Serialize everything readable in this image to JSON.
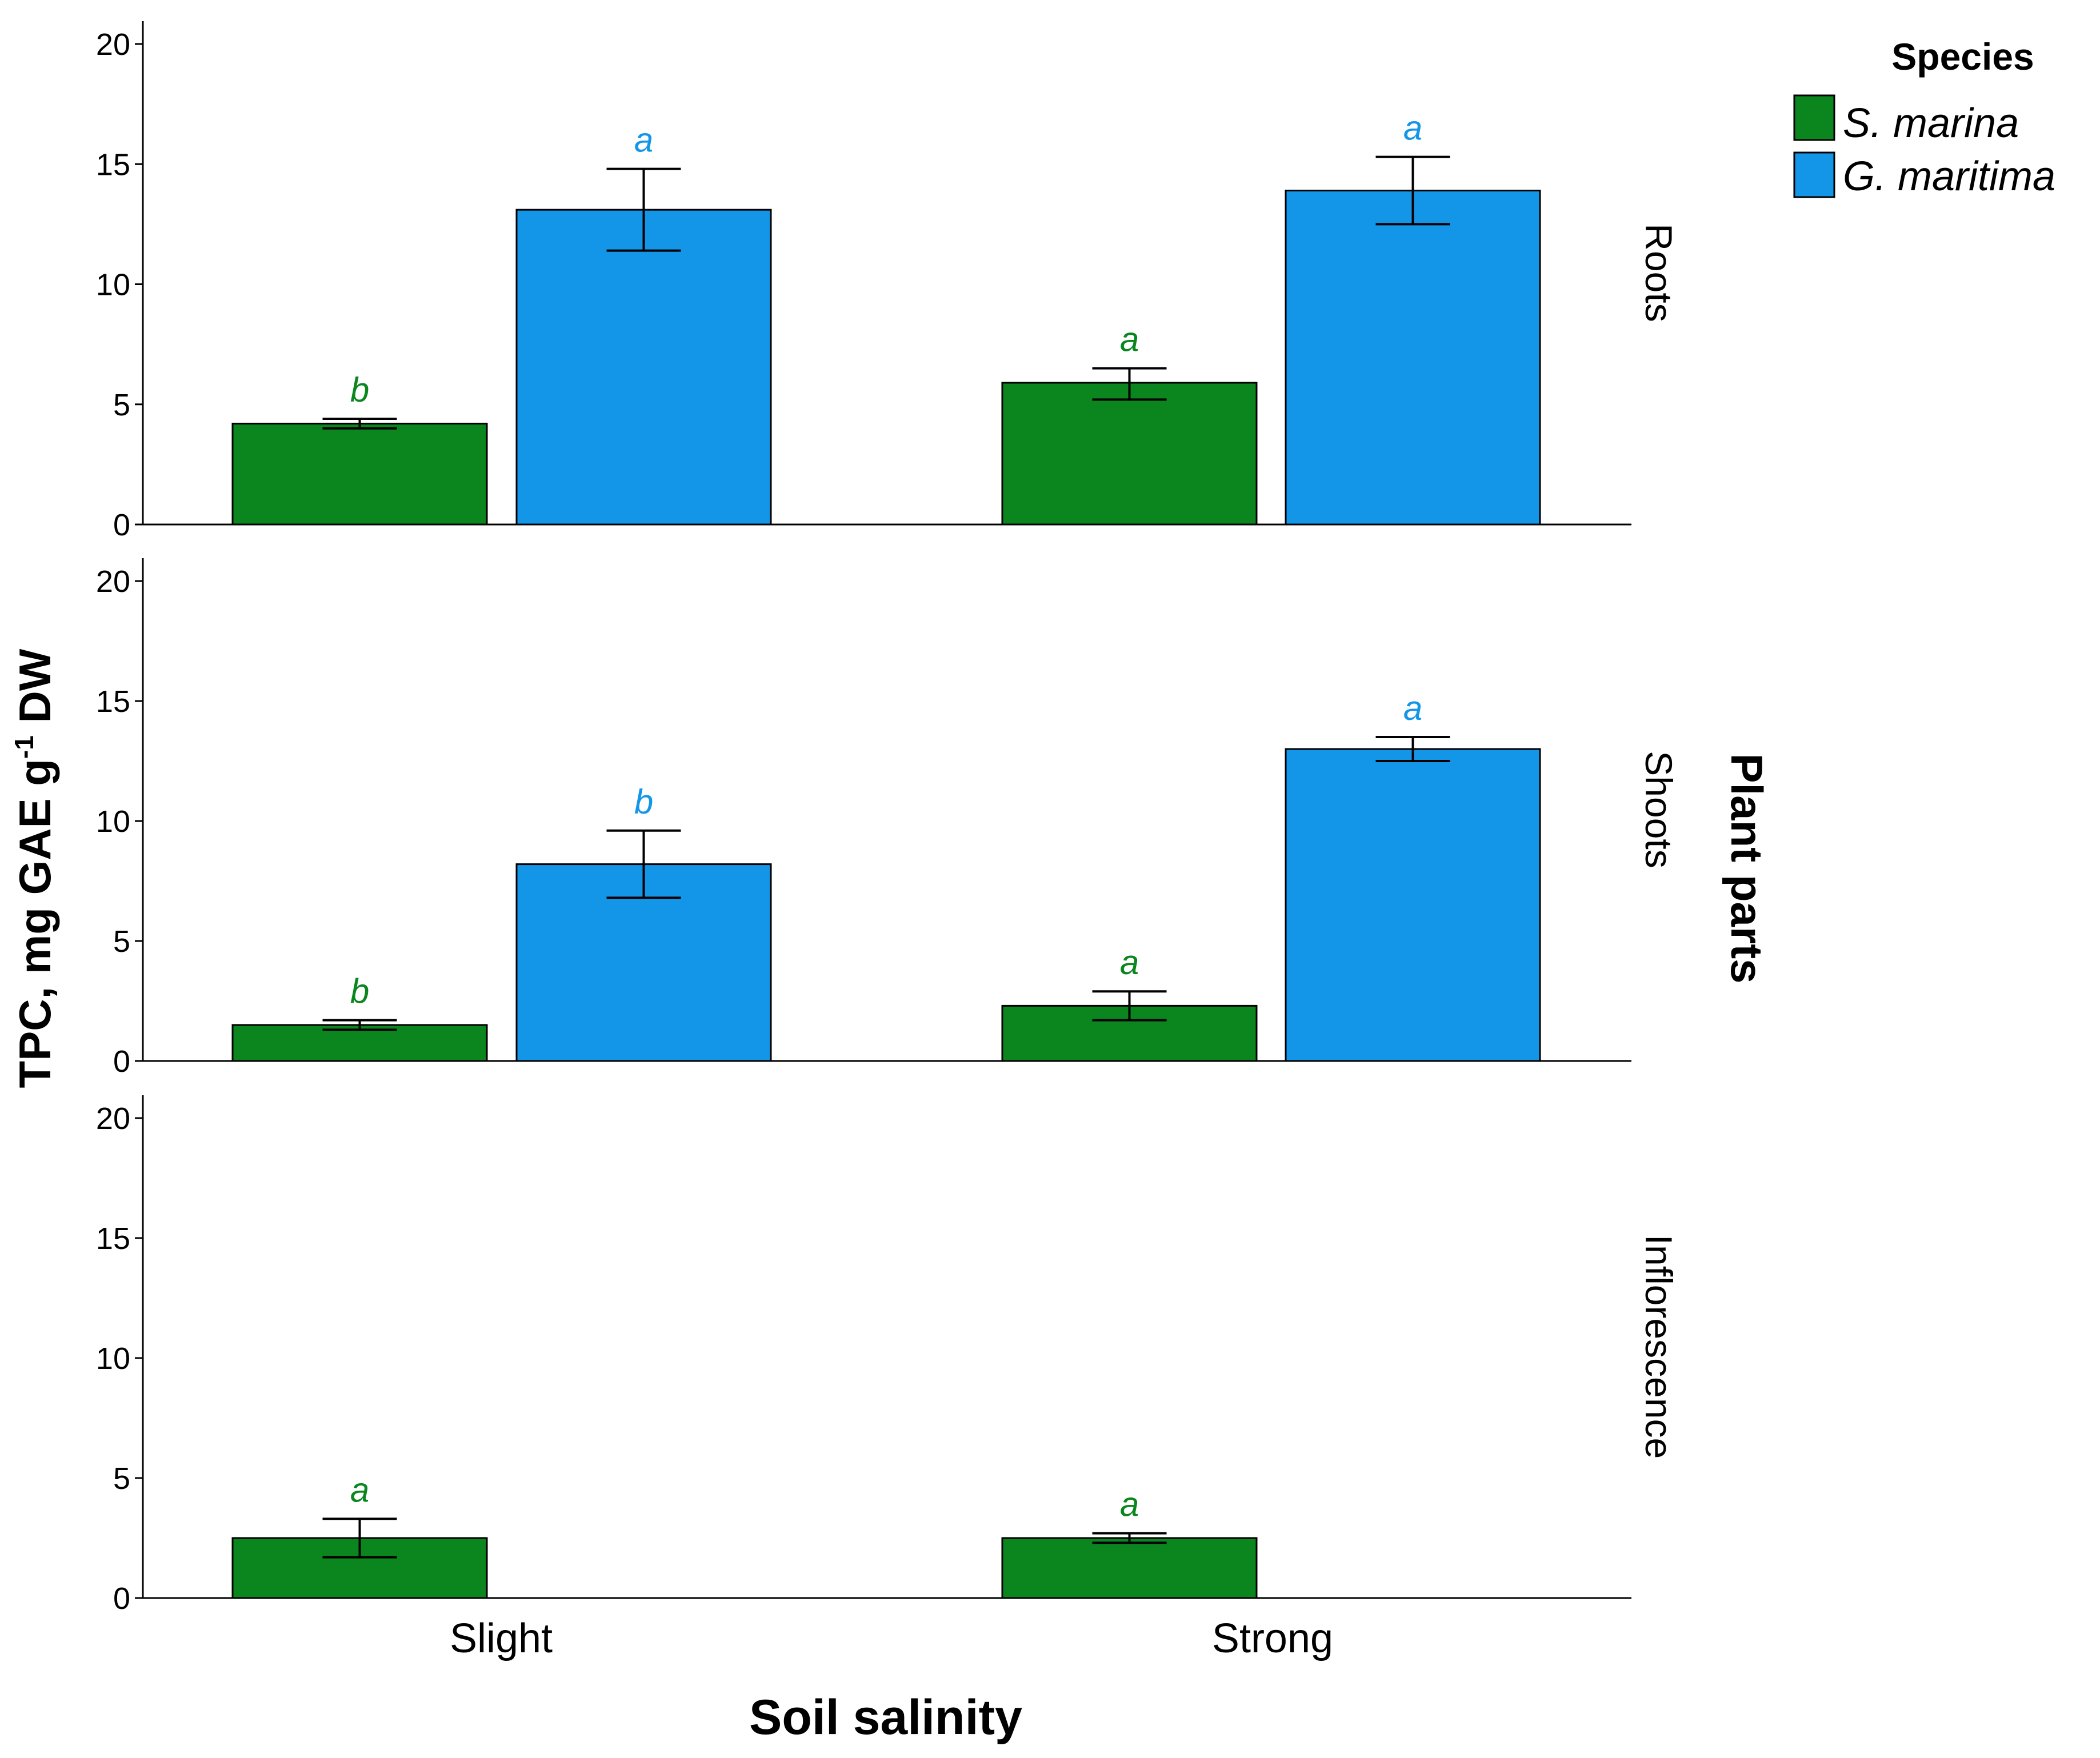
{
  "chart_data": {
    "type": "bar",
    "faceted_by": "Plant parts",
    "xlabel": "Soil salinity",
    "ylabel_main": "TPC, mg GAE g",
    "ylabel_sup": "-1",
    "ylabel_tail": " DW",
    "facet_title": "Plant parts",
    "legend_title": "Species",
    "legend_position": "top-right",
    "categories": [
      "Slight",
      "Strong"
    ],
    "ylim": [
      0,
      20
    ],
    "yticks": [
      "0",
      "5",
      "10",
      "15",
      "20"
    ],
    "series": [
      {
        "name": "S. marina",
        "color": "#0b861f"
      },
      {
        "name": "G. maritima",
        "color": "#1496e8"
      }
    ],
    "panels": [
      {
        "label": "Roots",
        "bars": [
          {
            "category": "Slight",
            "series": "S. marina",
            "value": 4.2,
            "err_low": 4.0,
            "err_high": 4.4,
            "letter": "b"
          },
          {
            "category": "Slight",
            "series": "G. maritima",
            "value": 13.1,
            "err_low": 11.4,
            "err_high": 14.8,
            "letter": "a"
          },
          {
            "category": "Strong",
            "series": "S. marina",
            "value": 5.9,
            "err_low": 5.2,
            "err_high": 6.5,
            "letter": "a"
          },
          {
            "category": "Strong",
            "series": "G. maritima",
            "value": 13.9,
            "err_low": 12.5,
            "err_high": 15.3,
            "letter": "a"
          }
        ]
      },
      {
        "label": "Shoots",
        "bars": [
          {
            "category": "Slight",
            "series": "S. marina",
            "value": 1.5,
            "err_low": 1.3,
            "err_high": 1.7,
            "letter": "b"
          },
          {
            "category": "Slight",
            "series": "G. maritima",
            "value": 8.2,
            "err_low": 6.8,
            "err_high": 9.6,
            "letter": "b"
          },
          {
            "category": "Strong",
            "series": "S. marina",
            "value": 2.3,
            "err_low": 1.7,
            "err_high": 2.9,
            "letter": "a"
          },
          {
            "category": "Strong",
            "series": "G. maritima",
            "value": 13.0,
            "err_low": 12.5,
            "err_high": 13.5,
            "letter": "a"
          }
        ]
      },
      {
        "label": "Inflorescence",
        "bars": [
          {
            "category": "Slight",
            "series": "S. marina",
            "value": 2.5,
            "err_low": 1.7,
            "err_high": 3.3,
            "letter": "a"
          },
          {
            "category": "Strong",
            "series": "S. marina",
            "value": 2.5,
            "err_low": 2.3,
            "err_high": 2.7,
            "letter": "a"
          }
        ]
      }
    ]
  }
}
